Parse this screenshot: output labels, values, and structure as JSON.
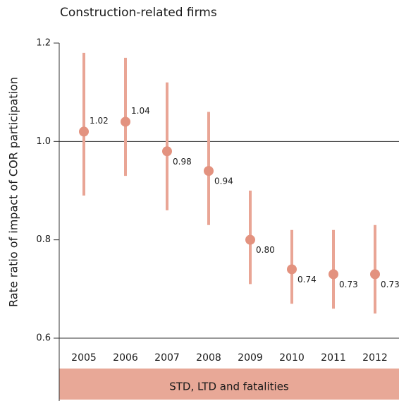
{
  "chart_data": {
    "type": "pointrange",
    "title": "Construction-related firms",
    "y_label": "Rate ratio of impact of COR participation",
    "band_label": "STD, LTD and fatalities",
    "categories": [
      "2005",
      "2006",
      "2007",
      "2008",
      "2009",
      "2010",
      "2011",
      "2012"
    ],
    "values": [
      1.02,
      1.04,
      0.98,
      0.94,
      0.8,
      0.74,
      0.73,
      0.73
    ],
    "value_labels": [
      "1.02",
      "1.04",
      "0.98",
      "0.94",
      "0.80",
      "0.74",
      "0.73",
      "0.73"
    ],
    "lower": [
      0.89,
      0.93,
      0.86,
      0.83,
      0.71,
      0.67,
      0.66,
      0.65
    ],
    "upper": [
      1.18,
      1.17,
      1.12,
      1.06,
      0.9,
      0.82,
      0.82,
      0.83
    ],
    "color": "#e3927f",
    "bar_color": "#e9a595",
    "band_color": "#e8a897",
    "reference_line": 1.0,
    "ylim": [
      0.6,
      1.2
    ],
    "yticks": [
      {
        "value": 0.6,
        "label": "0.6"
      },
      {
        "value": 0.8,
        "label": "0.8"
      },
      {
        "value": 1.0,
        "label": "1.0"
      },
      {
        "value": 1.2,
        "label": "1.2"
      }
    ]
  }
}
